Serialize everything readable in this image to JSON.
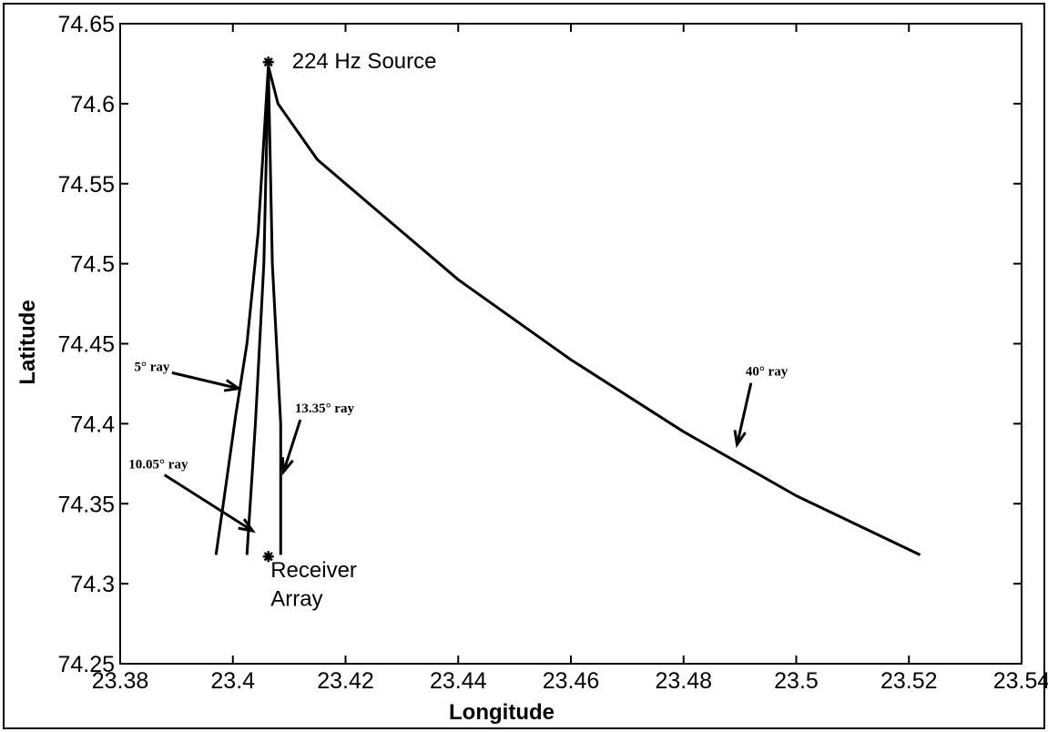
{
  "chart_data": {
    "type": "line",
    "title": "",
    "xlabel": "Longitude",
    "ylabel": "Latitude",
    "xlim": [
      23.38,
      23.54
    ],
    "ylim": [
      74.25,
      74.65
    ],
    "x_ticks": [
      "23.38",
      "23.4",
      "23.42",
      "23.44",
      "23.46",
      "23.48",
      "23.5",
      "23.52",
      "23.54"
    ],
    "y_ticks": [
      "74.25",
      "74.3",
      "74.35",
      "74.4",
      "74.45",
      "74.5",
      "74.55",
      "74.6",
      "74.65"
    ],
    "grid": false,
    "series": [
      {
        "name": "5° ray",
        "x": [
          23.4063,
          23.4045,
          23.4025,
          23.4005,
          23.3985,
          23.397
        ],
        "y": [
          74.6235,
          74.52,
          74.45,
          74.405,
          74.355,
          74.318
        ]
      },
      {
        "name": "10.05° ray",
        "x": [
          23.4063,
          23.4055,
          23.404,
          23.4025
        ],
        "y": [
          74.6235,
          74.5,
          74.4,
          74.318
        ]
      },
      {
        "name": "13.35° ray",
        "x": [
          23.4063,
          23.407,
          23.4085,
          23.4085
        ],
        "y": [
          74.6235,
          74.5,
          74.4,
          74.318
        ]
      },
      {
        "name": "40° ray",
        "x": [
          23.4063,
          23.408,
          23.415,
          23.425,
          23.44,
          23.46,
          23.48,
          23.5,
          23.522
        ],
        "y": [
          74.6235,
          74.6,
          74.565,
          74.535,
          74.49,
          74.44,
          74.395,
          74.355,
          74.318
        ]
      }
    ],
    "markers": [
      {
        "name": "source",
        "x": 23.4063,
        "y": 74.626
      },
      {
        "name": "receiver",
        "x": 23.4063,
        "y": 74.317
      }
    ],
    "annotations": [
      {
        "text": "224 Hz Source",
        "x": 23.4105,
        "y": 74.622
      },
      {
        "text": "Receiver",
        "x": 23.4067,
        "y": 74.304
      },
      {
        "text": "Array",
        "x": 23.4067,
        "y": 74.286
      },
      {
        "text": "5° ray",
        "x": 23.3825,
        "y": 74.433,
        "arrow_to": [
          23.401,
          74.422
        ]
      },
      {
        "text": "10.05° ray",
        "x": 23.3815,
        "y": 74.372,
        "arrow_to": [
          23.4035,
          74.333
        ]
      },
      {
        "text": "13.35° ray",
        "x": 23.411,
        "y": 74.407,
        "arrow_to": [
          23.409,
          74.37
        ]
      },
      {
        "text": "40° ray",
        "x": 23.491,
        "y": 74.43,
        "arrow_to": [
          23.4895,
          74.387
        ]
      }
    ]
  }
}
